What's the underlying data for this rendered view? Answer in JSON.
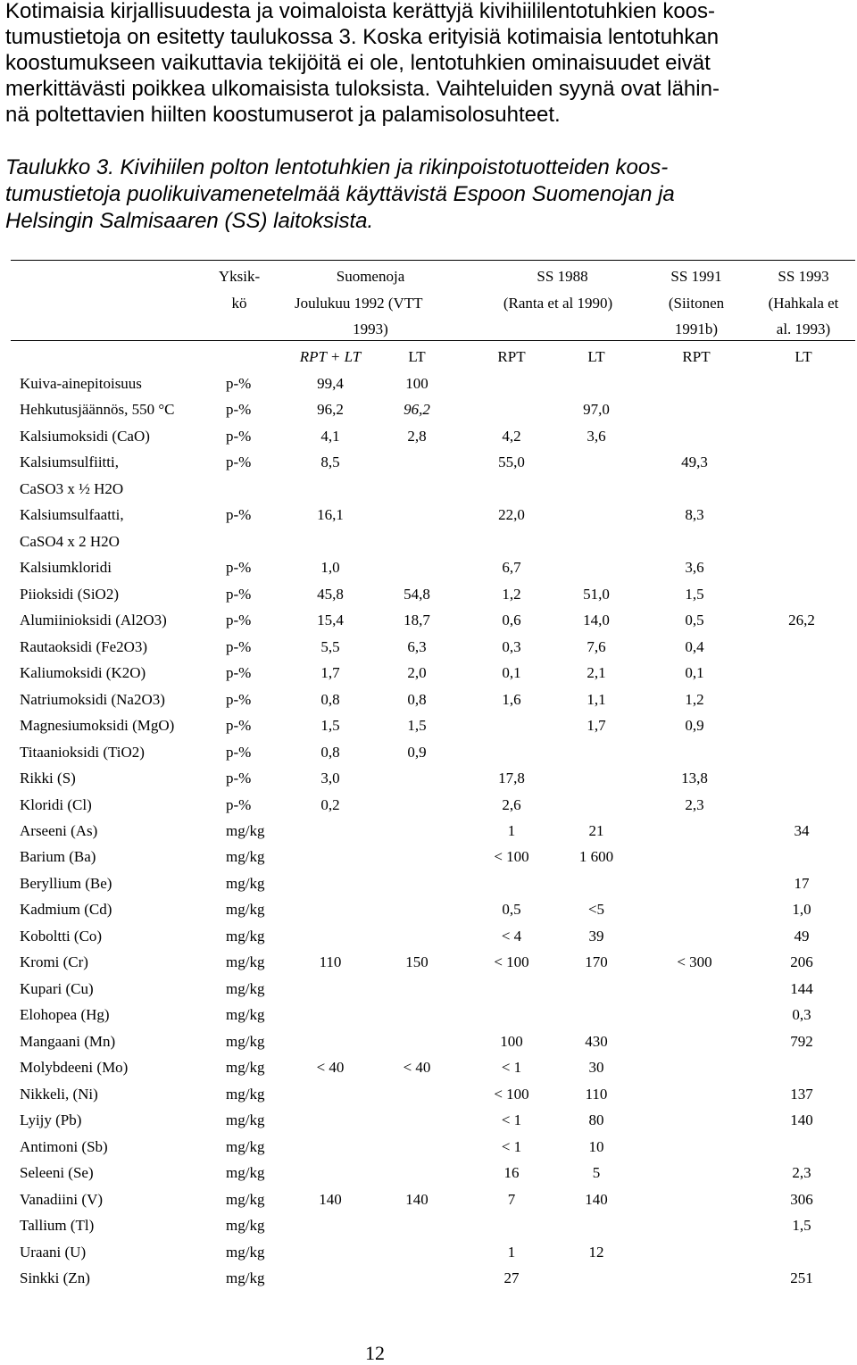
{
  "intro_lines": [
    "Kotimaisia kirjallisuudesta ja voimaloista kerättyjä kivihiililentotuhkien koos-",
    "tumustietoja on esitetty taulukossa 3. Koska erityisiä kotimaisia lentotuhkan",
    "koostumukseen vaikuttavia tekijöitä ei ole, lentotuhkien ominaisuudet eivät",
    "merkittävästi poikkea ulkomaisista tuloksista. Vaihteluiden syynä ovat lähin-",
    "nä poltettavien hiilten koostumuserot ja palamisolosuhteet."
  ],
  "caption_lines": [
    "Taulukko 3. Kivihiilen polton lentotuhkien ja rikinpoistotuotteiden koos-",
    "tumustietoja puolikuivamenetelmää käyttävistä Espoon Suomenojan ja",
    "Helsingin Salmisaaren (SS) laitoksista."
  ],
  "table": {
    "header": {
      "unit": [
        "Yksik-",
        "kö"
      ],
      "suomenoja": [
        "Suomenoja",
        "Joulukuu 1992  (VTT",
        "1993)"
      ],
      "ss1988": [
        "SS 1988",
        "(Ranta et al 1990)"
      ],
      "ss1991": [
        "SS 1991",
        "(Siitonen",
        "1991b)"
      ],
      "ss1993": [
        "SS 1993",
        "(Hahkala et",
        "al. 1993)"
      ]
    },
    "subheader": [
      "RPT + LT",
      "LT",
      "RPT",
      "LT",
      "RPT",
      "LT"
    ],
    "rows": [
      {
        "label": "Kuiva-ainepitoisuus",
        "unit": "p-%",
        "v": [
          "99,4",
          "100",
          "",
          "",
          "",
          ""
        ]
      },
      {
        "label": "Hehkutusjäännös, 550 °C",
        "unit": "p-%",
        "v": [
          "96,2",
          "96,2",
          "",
          "97,0",
          "",
          ""
        ]
      },
      {
        "label": "Kalsiumoksidi (CaO)",
        "unit": "p-%",
        "v": [
          "4,1",
          "2,8",
          "4,2",
          "3,6",
          "",
          ""
        ]
      },
      {
        "label": "Kalsiumsulfiitti,",
        "unit": "p-%",
        "v": [
          "8,5",
          "",
          "55,0",
          "",
          "49,3",
          ""
        ]
      },
      {
        "label": "CaSO3 x ½ H2O",
        "unit": "",
        "v": [
          "",
          "",
          "",
          "",
          "",
          ""
        ]
      },
      {
        "label": "Kalsiumsulfaatti,",
        "unit": "p-%",
        "v": [
          "16,1",
          "",
          "22,0",
          "",
          "8,3",
          ""
        ]
      },
      {
        "label": "CaSO4 x 2 H2O",
        "unit": "",
        "v": [
          "",
          "",
          "",
          "",
          "",
          ""
        ]
      },
      {
        "label": "Kalsiumkloridi",
        "unit": "p-%",
        "v": [
          "1,0",
          "",
          "6,7",
          "",
          "3,6",
          ""
        ]
      },
      {
        "label": "Piioksidi (SiO2)",
        "unit": "p-%",
        "v": [
          "45,8",
          "54,8",
          "1,2",
          "51,0",
          "1,5",
          ""
        ]
      },
      {
        "label": "Alumiinioksidi (Al2O3)",
        "unit": "p-%",
        "v": [
          "15,4",
          "18,7",
          "0,6",
          "14,0",
          "0,5",
          "26,2"
        ]
      },
      {
        "label": "Rautaoksidi (Fe2O3)",
        "unit": "p-%",
        "v": [
          "5,5",
          "6,3",
          "0,3",
          "7,6",
          "0,4",
          ""
        ]
      },
      {
        "label": "Kaliumoksidi (K2O)",
        "unit": "p-%",
        "v": [
          "1,7",
          "2,0",
          "0,1",
          "2,1",
          "0,1",
          ""
        ]
      },
      {
        "label": "Natriumoksidi (Na2O3)",
        "unit": "p-%",
        "v": [
          "0,8",
          "0,8",
          "1,6",
          "1,1",
          "1,2",
          ""
        ]
      },
      {
        "label": "Magnesiumoksidi (MgO)",
        "unit": "p-%",
        "v": [
          "1,5",
          "1,5",
          "",
          "1,7",
          "0,9",
          ""
        ]
      },
      {
        "label": "Titaanioksidi (TiO2)",
        "unit": "p-%",
        "v": [
          "0,8",
          "0,9",
          "",
          "",
          "",
          ""
        ]
      },
      {
        "label": "Rikki (S)",
        "unit": "p-%",
        "v": [
          "3,0",
          "",
          "17,8",
          "",
          "13,8",
          ""
        ]
      },
      {
        "label": "Kloridi (Cl)",
        "unit": "p-%",
        "v": [
          "0,2",
          "",
          "2,6",
          "",
          "2,3",
          ""
        ]
      },
      {
        "label": "Arseeni (As)",
        "unit": "mg/kg",
        "v": [
          "",
          "",
          "1",
          "21",
          "",
          "34"
        ]
      },
      {
        "label": "Barium (Ba)",
        "unit": "mg/kg",
        "v": [
          "",
          "",
          "< 100",
          "1 600",
          "",
          ""
        ]
      },
      {
        "label": "Beryllium (Be)",
        "unit": "mg/kg",
        "v": [
          "",
          "",
          "",
          "",
          "",
          "17"
        ]
      },
      {
        "label": "Kadmium (Cd)",
        "unit": "mg/kg",
        "v": [
          "",
          "",
          "0,5",
          "<5",
          "",
          "1,0"
        ]
      },
      {
        "label": "Koboltti (Co)",
        "unit": "mg/kg",
        "v": [
          "",
          "",
          "< 4",
          "39",
          "",
          "49"
        ]
      },
      {
        "label": "Kromi (Cr)",
        "unit": "mg/kg",
        "v": [
          "110",
          "150",
          "< 100",
          "170",
          "< 300",
          "206"
        ]
      },
      {
        "label": "Kupari (Cu)",
        "unit": "mg/kg",
        "v": [
          "",
          "",
          "",
          "",
          "",
          "144"
        ]
      },
      {
        "label": "Elohopea (Hg)",
        "unit": "mg/kg",
        "v": [
          "",
          "",
          "",
          "",
          "",
          "0,3"
        ]
      },
      {
        "label": "Mangaani (Mn)",
        "unit": "mg/kg",
        "v": [
          "",
          "",
          "100",
          "430",
          "",
          "792"
        ]
      },
      {
        "label": "Molybdeeni (Mo)",
        "unit": "mg/kg",
        "v": [
          "< 40",
          "< 40",
          "< 1",
          "30",
          "",
          ""
        ]
      },
      {
        "label": "Nikkeli, (Ni)",
        "unit": "mg/kg",
        "v": [
          "",
          "",
          "< 100",
          "110",
          "",
          "137"
        ]
      },
      {
        "label": "Lyijy (Pb)",
        "unit": "mg/kg",
        "v": [
          "",
          "",
          "< 1",
          "80",
          "",
          "140"
        ]
      },
      {
        "label": "Antimoni (Sb)",
        "unit": "mg/kg",
        "v": [
          "",
          "",
          "< 1",
          "10",
          "",
          ""
        ]
      },
      {
        "label": "Seleeni (Se)",
        "unit": "mg/kg",
        "v": [
          "",
          "",
          "16",
          "5",
          "",
          "2,3"
        ]
      },
      {
        "label": "Vanadiini (V)",
        "unit": "mg/kg",
        "v": [
          "140",
          "140",
          "7",
          "140",
          "",
          "306"
        ]
      },
      {
        "label": "Tallium (Tl)",
        "unit": "mg/kg",
        "v": [
          "",
          "",
          "",
          "",
          "",
          "1,5"
        ]
      },
      {
        "label": "Uraani (U)",
        "unit": "mg/kg",
        "v": [
          "",
          "",
          "1",
          "12",
          "",
          ""
        ]
      },
      {
        "label": "Sinkki (Zn)",
        "unit": "mg/kg",
        "v": [
          "",
          "",
          "27",
          "",
          "",
          "251"
        ]
      }
    ]
  },
  "page_number": "12"
}
